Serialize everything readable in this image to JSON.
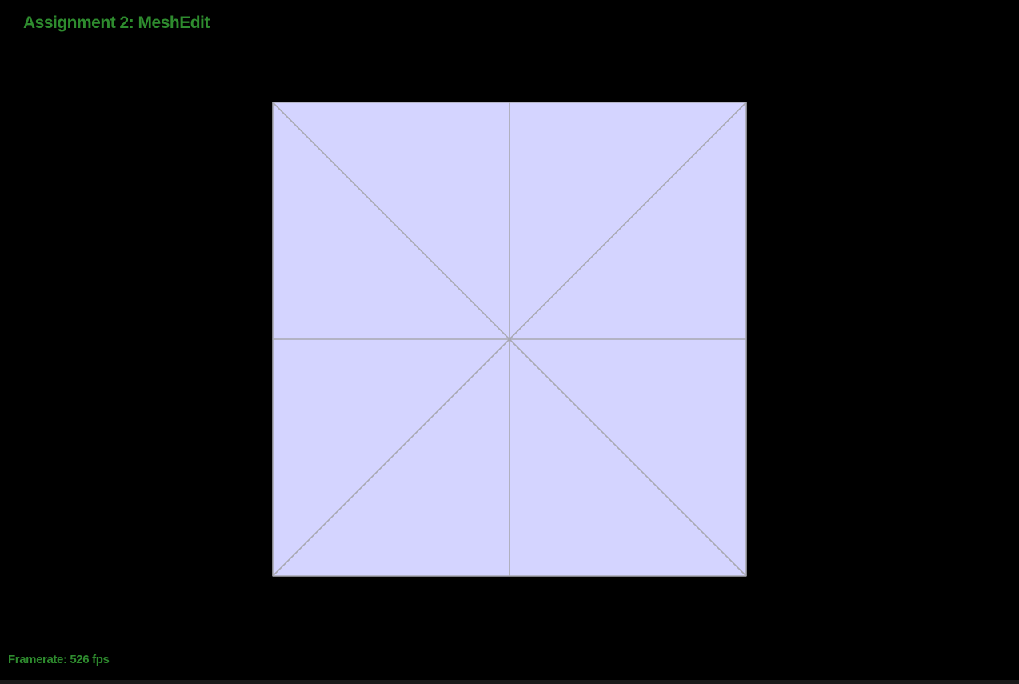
{
  "window": {
    "title": "Assignment 2: MeshEdit"
  },
  "status": {
    "framerate_label": "Framerate:",
    "framerate_value": "526",
    "framerate_unit": "fps"
  },
  "mesh": {
    "face_color": "#d4d4ff",
    "edge_color": "#a8a8b0",
    "vertices": [
      {
        "id": "v-top-left",
        "u": 0.0,
        "v": 0.0
      },
      {
        "id": "v-top-mid",
        "u": 0.5,
        "v": 0.0
      },
      {
        "id": "v-top-right",
        "u": 1.0,
        "v": 0.0
      },
      {
        "id": "v-mid-left",
        "u": 0.0,
        "v": 0.5
      },
      {
        "id": "v-center",
        "u": 0.5,
        "v": 0.5
      },
      {
        "id": "v-mid-right",
        "u": 1.0,
        "v": 0.5
      },
      {
        "id": "v-bottom-left",
        "u": 0.0,
        "v": 1.0
      },
      {
        "id": "v-bottom-mid",
        "u": 0.5,
        "v": 1.0
      },
      {
        "id": "v-bottom-right",
        "u": 1.0,
        "v": 1.0
      }
    ],
    "faces": [
      [
        "v-top-left",
        "v-top-mid",
        "v-center"
      ],
      [
        "v-top-mid",
        "v-top-right",
        "v-center"
      ],
      [
        "v-top-right",
        "v-mid-right",
        "v-center"
      ],
      [
        "v-mid-right",
        "v-bottom-right",
        "v-center"
      ],
      [
        "v-bottom-right",
        "v-bottom-mid",
        "v-center"
      ],
      [
        "v-bottom-mid",
        "v-bottom-left",
        "v-center"
      ],
      [
        "v-bottom-left",
        "v-mid-left",
        "v-center"
      ],
      [
        "v-mid-left",
        "v-top-left",
        "v-center"
      ]
    ]
  }
}
